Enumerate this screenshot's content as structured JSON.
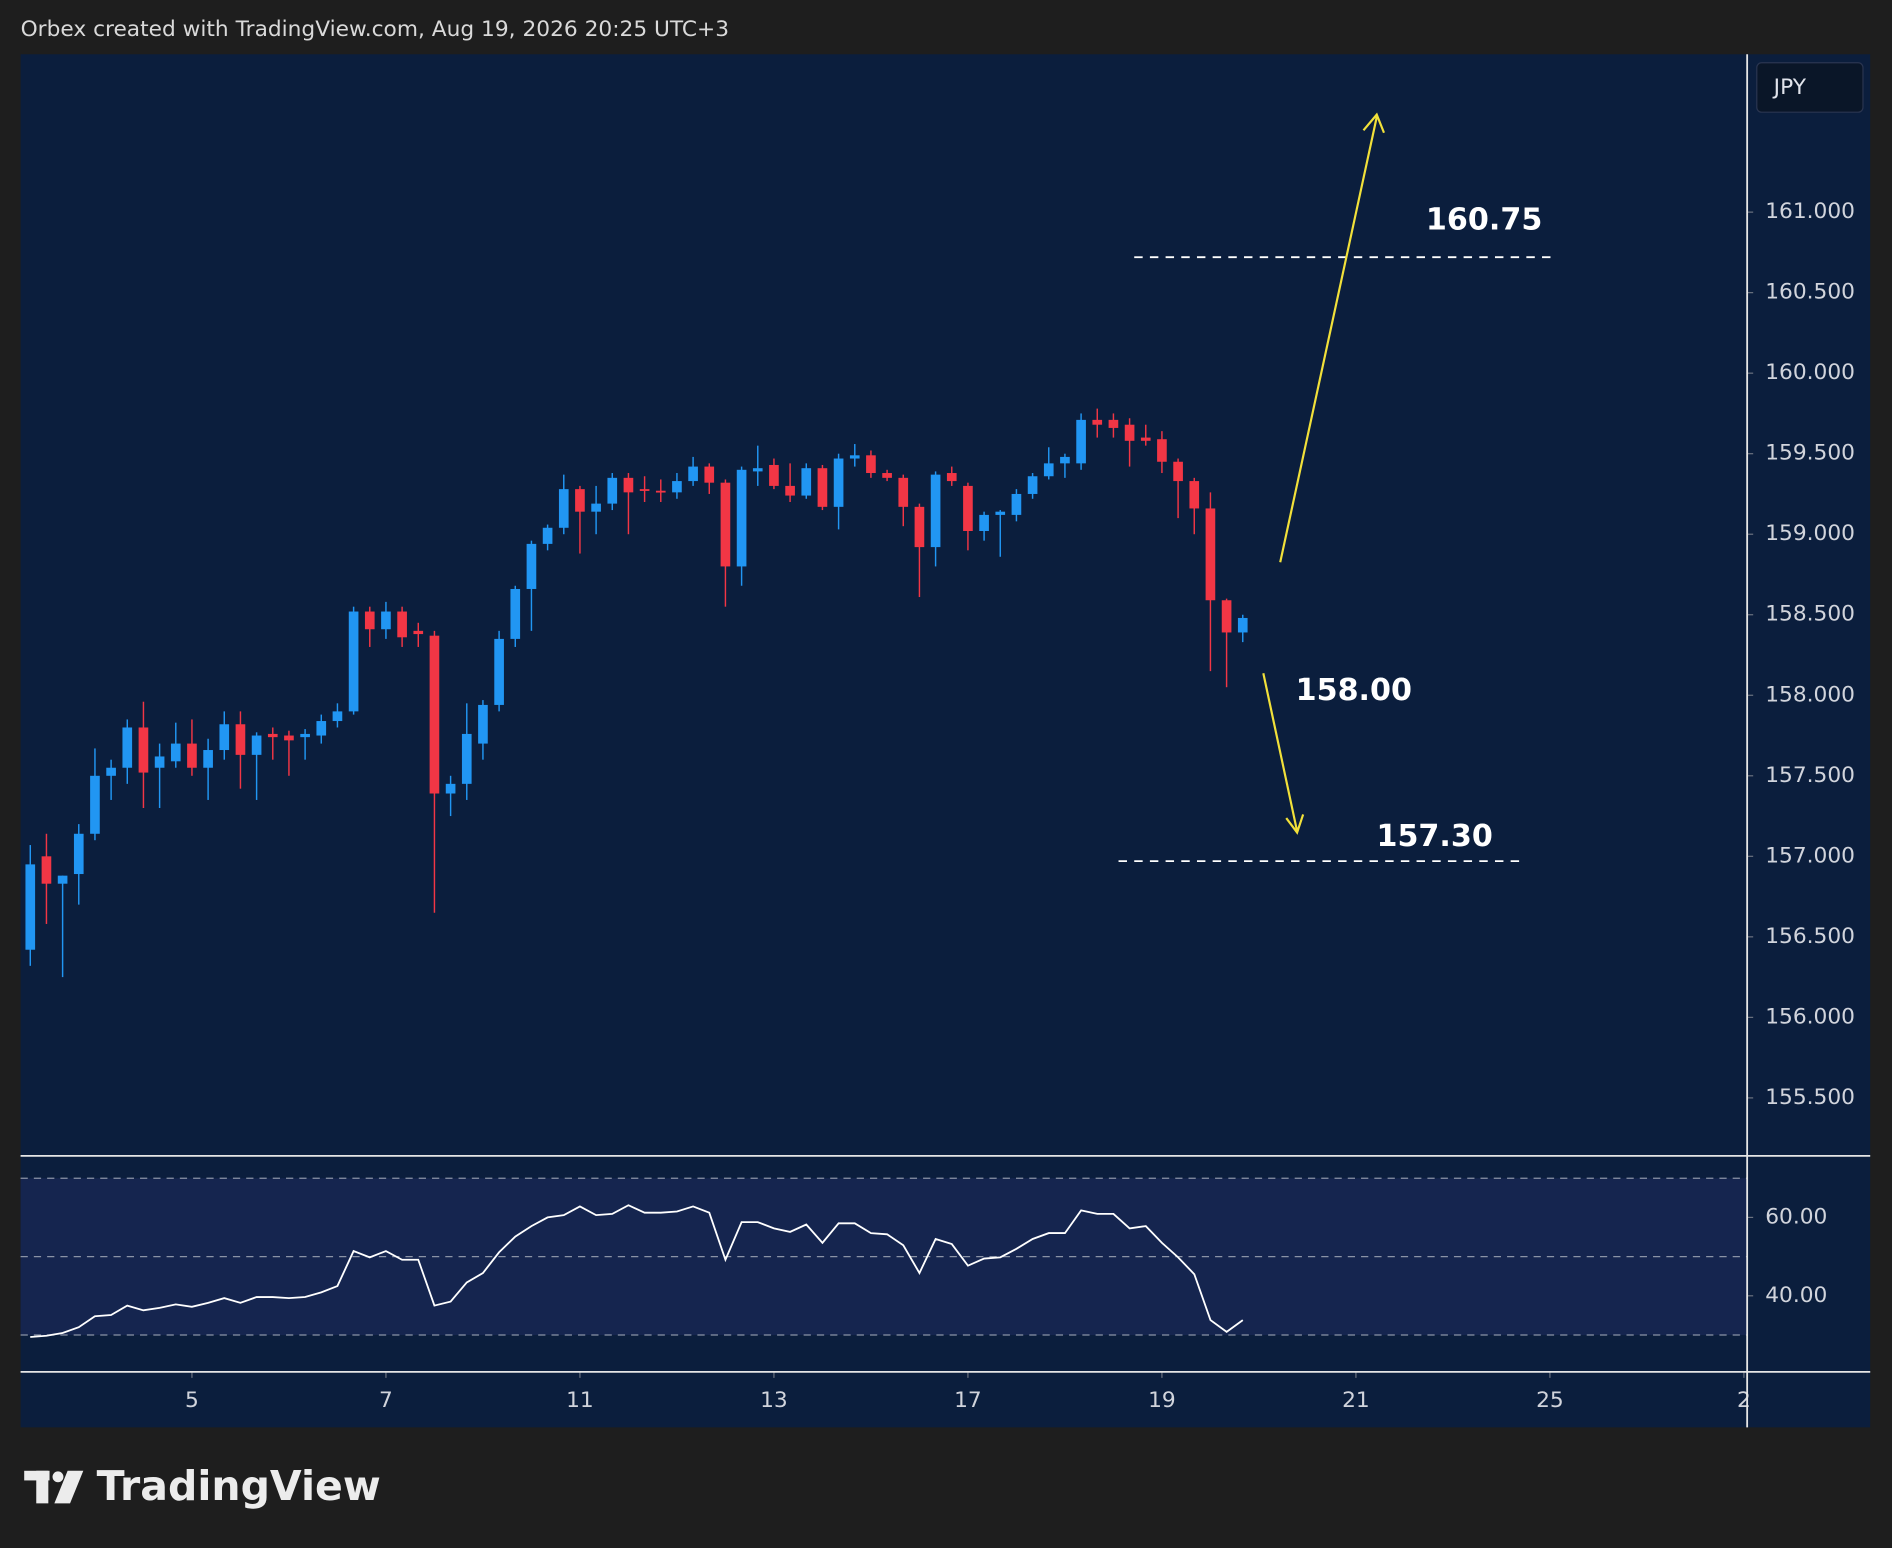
{
  "chart_data": {
    "type": "candlestick",
    "header": "Orbex created with TradingView.com, Aug 19, 2026 20:25 UTC+3",
    "currency": "JPY",
    "brand": "TradingView",
    "up_color": "#2196f3",
    "down_color": "#f23645",
    "open": [
      156.42,
      157.0,
      156.83,
      156.89,
      157.14,
      157.5,
      157.55,
      157.8,
      157.55,
      157.59,
      157.7,
      157.55,
      157.66,
      157.82,
      157.63,
      157.76,
      157.75,
      157.74,
      157.75,
      157.84,
      157.9,
      158.52,
      158.41,
      158.52,
      158.4,
      158.37,
      157.39,
      157.45,
      157.7,
      157.94,
      158.35,
      158.66,
      158.94,
      159.04,
      159.28,
      159.14,
      159.19,
      159.35,
      159.28,
      159.27,
      159.26,
      159.33,
      159.42,
      159.32,
      158.8,
      159.39,
      159.43,
      159.3,
      159.24,
      159.41,
      159.17,
      159.47,
      159.49,
      159.38,
      159.35,
      159.17,
      158.92,
      159.38,
      159.3,
      159.02,
      159.12,
      159.12,
      159.25,
      159.36,
      159.44,
      159.44,
      159.71,
      159.71,
      159.68,
      159.6,
      159.59,
      159.45,
      159.33,
      159.16,
      158.59,
      158.39
    ],
    "high": [
      157.07,
      157.14,
      156.88,
      157.2,
      157.67,
      157.6,
      157.85,
      157.96,
      157.7,
      157.83,
      157.85,
      157.73,
      157.9,
      157.9,
      157.77,
      157.8,
      157.78,
      157.79,
      157.88,
      157.95,
      158.55,
      158.55,
      158.58,
      158.55,
      158.45,
      158.4,
      157.5,
      157.95,
      157.97,
      158.4,
      158.68,
      158.96,
      159.06,
      159.37,
      159.3,
      159.3,
      159.38,
      159.38,
      159.36,
      159.34,
      159.38,
      159.48,
      159.44,
      159.34,
      159.42,
      159.55,
      159.47,
      159.44,
      159.44,
      159.43,
      159.5,
      159.56,
      159.52,
      159.4,
      159.37,
      159.19,
      159.39,
      159.42,
      159.32,
      159.14,
      159.15,
      159.28,
      159.38,
      159.54,
      159.5,
      159.75,
      159.78,
      159.75,
      159.72,
      159.68,
      159.64,
      159.47,
      159.35,
      159.26,
      158.6,
      158.5
    ],
    "low": [
      156.32,
      156.58,
      156.25,
      156.7,
      157.1,
      157.35,
      157.45,
      157.3,
      157.3,
      157.55,
      157.5,
      157.35,
      157.6,
      157.42,
      157.35,
      157.6,
      157.5,
      157.6,
      157.7,
      157.8,
      157.88,
      158.3,
      158.35,
      158.3,
      158.3,
      156.65,
      157.25,
      157.35,
      157.6,
      157.9,
      158.3,
      158.4,
      158.9,
      159.0,
      158.88,
      159.0,
      159.15,
      159.0,
      159.2,
      159.2,
      159.22,
      159.3,
      159.25,
      158.55,
      158.68,
      159.3,
      159.28,
      159.2,
      159.22,
      159.15,
      159.03,
      159.42,
      159.35,
      159.33,
      159.05,
      158.61,
      158.8,
      159.3,
      158.9,
      158.96,
      158.86,
      159.08,
      159.22,
      159.34,
      159.35,
      159.4,
      159.6,
      159.6,
      159.42,
      159.55,
      159.38,
      159.1,
      159.0,
      158.15,
      158.05,
      158.33
    ],
    "close": [
      156.95,
      156.83,
      156.88,
      157.14,
      157.5,
      157.55,
      157.8,
      157.52,
      157.62,
      157.7,
      157.55,
      157.66,
      157.82,
      157.63,
      157.75,
      157.74,
      157.72,
      157.76,
      157.84,
      157.9,
      158.52,
      158.41,
      158.52,
      158.36,
      158.38,
      157.39,
      157.45,
      157.76,
      157.94,
      158.35,
      158.66,
      158.94,
      159.04,
      159.28,
      159.14,
      159.19,
      159.35,
      159.26,
      159.27,
      159.26,
      159.33,
      159.42,
      159.32,
      158.8,
      159.4,
      159.41,
      159.3,
      159.24,
      159.41,
      159.17,
      159.47,
      159.49,
      159.38,
      159.35,
      159.17,
      158.92,
      159.37,
      159.33,
      159.02,
      159.12,
      159.14,
      159.25,
      159.36,
      159.44,
      159.48,
      159.71,
      159.68,
      159.66,
      159.58,
      159.58,
      159.45,
      159.33,
      159.16,
      158.59,
      158.39,
      158.48
    ],
    "xlim": [
      -0.6,
      106.2
    ],
    "xticks": [
      {
        "value": 10,
        "label": "5"
      },
      {
        "value": 22,
        "label": "7"
      },
      {
        "value": 34,
        "label": "11"
      },
      {
        "value": 46,
        "label": "13"
      },
      {
        "value": 58,
        "label": "17"
      },
      {
        "value": 70,
        "label": "19"
      },
      {
        "value": 82,
        "label": "21"
      },
      {
        "value": 94,
        "label": "25"
      },
      {
        "value": 106,
        "label": "2"
      }
    ],
    "ylim": [
      155.14,
      161.98
    ],
    "yticks": [
      {
        "value": 155.5,
        "label": "155.500"
      },
      {
        "value": 156,
        "label": "156.000"
      },
      {
        "value": 156.5,
        "label": "156.500"
      },
      {
        "value": 157,
        "label": "157.000"
      },
      {
        "value": 157.5,
        "label": "157.500"
      },
      {
        "value": 158,
        "label": "158.000"
      },
      {
        "value": 158.5,
        "label": "158.500"
      },
      {
        "value": 159,
        "label": "159.000"
      },
      {
        "value": 159.5,
        "label": "159.500"
      },
      {
        "value": 160,
        "label": "160.000"
      },
      {
        "value": 160.5,
        "label": "160.500"
      },
      {
        "value": 161,
        "label": "161.000"
      }
    ],
    "annotations": [
      "160.75",
      "158.00",
      "157.30"
    ],
    "hlines": [
      160.72,
      156.97
    ],
    "rsi": {
      "color": "#ffffff",
      "values": [
        29.5,
        29.8,
        30.5,
        32.0,
        34.8,
        35.1,
        37.5,
        36.3,
        36.9,
        37.8,
        37.2,
        38.2,
        39.4,
        38.2,
        39.7,
        39.7,
        39.4,
        39.7,
        40.9,
        42.5,
        51.4,
        49.8,
        51.4,
        49.2,
        49.2,
        37.5,
        38.5,
        43.4,
        45.8,
        51.1,
        55.1,
        57.8,
        60.0,
        60.6,
        62.8,
        60.6,
        60.9,
        63.1,
        61.2,
        61.2,
        61.5,
        62.8,
        61.2,
        49.2,
        58.8,
        58.8,
        57.2,
        56.3,
        58.2,
        53.5,
        58.5,
        58.5,
        56.0,
        55.7,
        52.9,
        45.8,
        54.5,
        53.2,
        47.7,
        49.5,
        49.8,
        52.0,
        54.5,
        56.0,
        56.0,
        61.8,
        60.9,
        60.9,
        57.2,
        57.8,
        53.5,
        49.8,
        45.5,
        33.8,
        30.8,
        33.8
      ],
      "ylim": [
        20.6,
        75.7
      ],
      "yticks": [
        {
          "value": 40,
          "label": "40.00"
        },
        {
          "value": 60,
          "label": "60.00"
        }
      ],
      "levels": [
        30,
        50,
        70
      ]
    }
  }
}
